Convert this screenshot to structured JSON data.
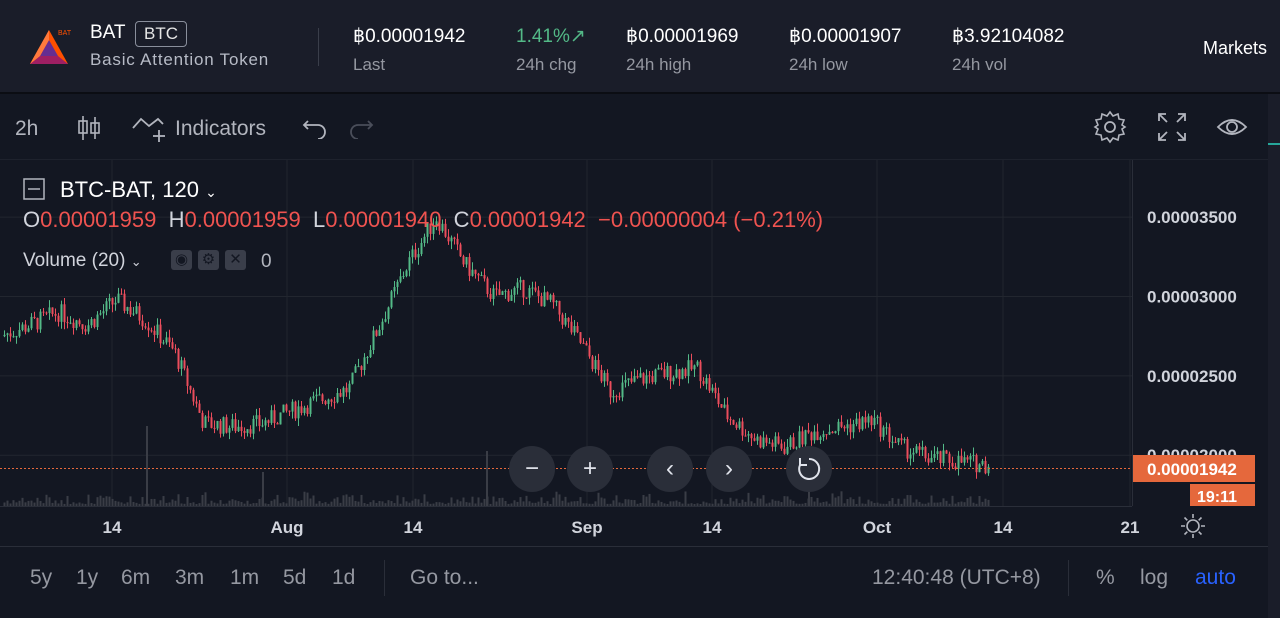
{
  "header": {
    "symbol": "BAT",
    "quote": "BTC",
    "logo_badge": "BAT",
    "name": "Basic Attention Token",
    "stats": [
      {
        "value": "฿0.00001942",
        "label": "Last"
      },
      {
        "value": "1.41%",
        "label": "24h chg",
        "arrow": "↗"
      },
      {
        "value": "฿0.00001969",
        "label": "24h high"
      },
      {
        "value": "฿0.00001907",
        "label": "24h low"
      },
      {
        "value": "฿3.92104082",
        "label": "24h vol"
      }
    ],
    "markets_label": "Markets"
  },
  "toolbar": {
    "interval": "2h",
    "indicators_label": "Indicators"
  },
  "legend": {
    "title": "BTC-BAT, 120",
    "o_label": "O",
    "o_value": "0.00001959",
    "h_label": "H",
    "h_value": "0.00001959",
    "l_label": "L",
    "l_value": "0.00001940",
    "c_label": "C",
    "c_value": "0.00001942",
    "change": "−0.00000004 (−0.21%)",
    "volume_label": "Volume (20)",
    "volume_value": "0"
  },
  "chart_data": {
    "type": "line",
    "series": [
      {
        "name": "BTC-BAT",
        "x": [
          "Jul 1",
          "Jul 8",
          "Jul 11",
          "Jul 14",
          "Jul 18",
          "Jul 22",
          "Jul 26",
          "Jul 29",
          "Aug 1",
          "Aug 5",
          "Aug 8",
          "Aug 11",
          "Aug 14",
          "Aug 17",
          "Aug 19",
          "Aug 21",
          "Aug 23",
          "Aug 25",
          "Aug 27",
          "Aug 30",
          "Sep 2",
          "Sep 5",
          "Sep 8",
          "Sep 11",
          "Sep 14",
          "Sep 17",
          "Sep 20",
          "Sep 23",
          "Sep 26",
          "Sep 29",
          "Oct 2",
          "Oct 5",
          "Oct 8",
          "Oct 11",
          "Oct 13"
        ],
        "values": [
          2.75e-05,
          2.82e-05,
          2.9e-05,
          2.82e-05,
          2.98e-05,
          2.85e-05,
          2.65e-05,
          2.2e-05,
          2.18e-05,
          2.2e-05,
          2.28e-05,
          2.35e-05,
          2.42e-05,
          2.8e-05,
          3.2e-05,
          3.5e-05,
          3.2e-05,
          3e-05,
          3.05e-05,
          2.95e-05,
          2.7e-05,
          2.4e-05,
          2.48e-05,
          2.52e-05,
          2.55e-05,
          2.25e-05,
          2.1e-05,
          2.05e-05,
          2.15e-05,
          2.18e-05,
          2.22e-05,
          2.05e-05,
          1.98e-05,
          1.96e-05,
          1.94e-05
        ]
      }
    ],
    "y_ticks": [
      "0.00003500",
      "0.00003000",
      "0.00002500",
      "0.00002000"
    ],
    "x_ticks": [
      "14",
      "Aug",
      "14",
      "Sep",
      "14",
      "Oct",
      "14",
      "21"
    ],
    "ylim": [
      1.68e-05,
      3.86e-05
    ],
    "last_price_label": "0.00001942",
    "countdown_label": "19:11",
    "up_color": "#53b987",
    "down_color": "#eb4d5c"
  },
  "nav": {
    "zoom_out": "−",
    "zoom_in": "+",
    "scroll_left": "‹",
    "scroll_right": "›"
  },
  "bottom": {
    "ranges": [
      "5y",
      "1y",
      "6m",
      "3m",
      "1m",
      "5d",
      "1d"
    ],
    "goto_label": "Go to...",
    "time": "12:40:48 (UTC+8)",
    "percent": "%",
    "log": "log",
    "auto": "auto"
  }
}
